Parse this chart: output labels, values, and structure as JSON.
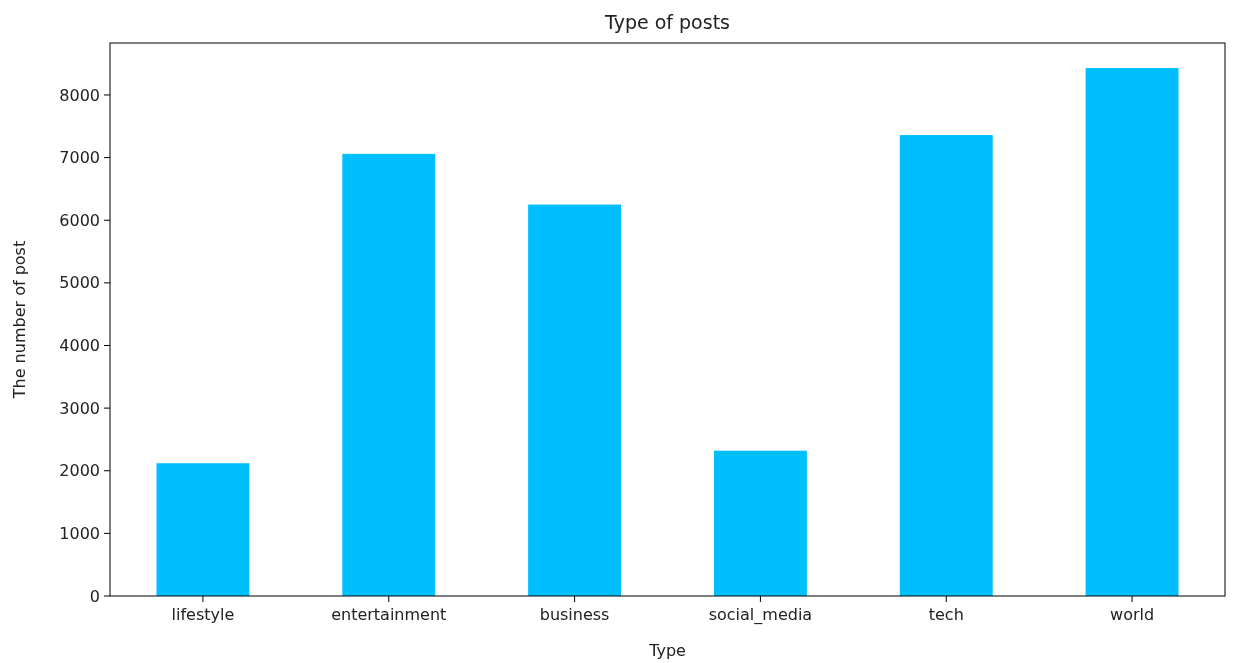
{
  "chart_data": {
    "type": "bar",
    "title": "Type of posts",
    "xlabel": "Type",
    "ylabel": "The number of post",
    "categories": [
      "lifestyle",
      "entertainment",
      "business",
      "social_media",
      "tech",
      "world"
    ],
    "values": [
      2120,
      7060,
      6250,
      2320,
      7360,
      8430
    ],
    "color": "#00bfff",
    "ylim": [
      0,
      8830
    ],
    "yticks": [
      0,
      1000,
      2000,
      3000,
      4000,
      5000,
      6000,
      7000,
      8000
    ],
    "grid": false
  }
}
